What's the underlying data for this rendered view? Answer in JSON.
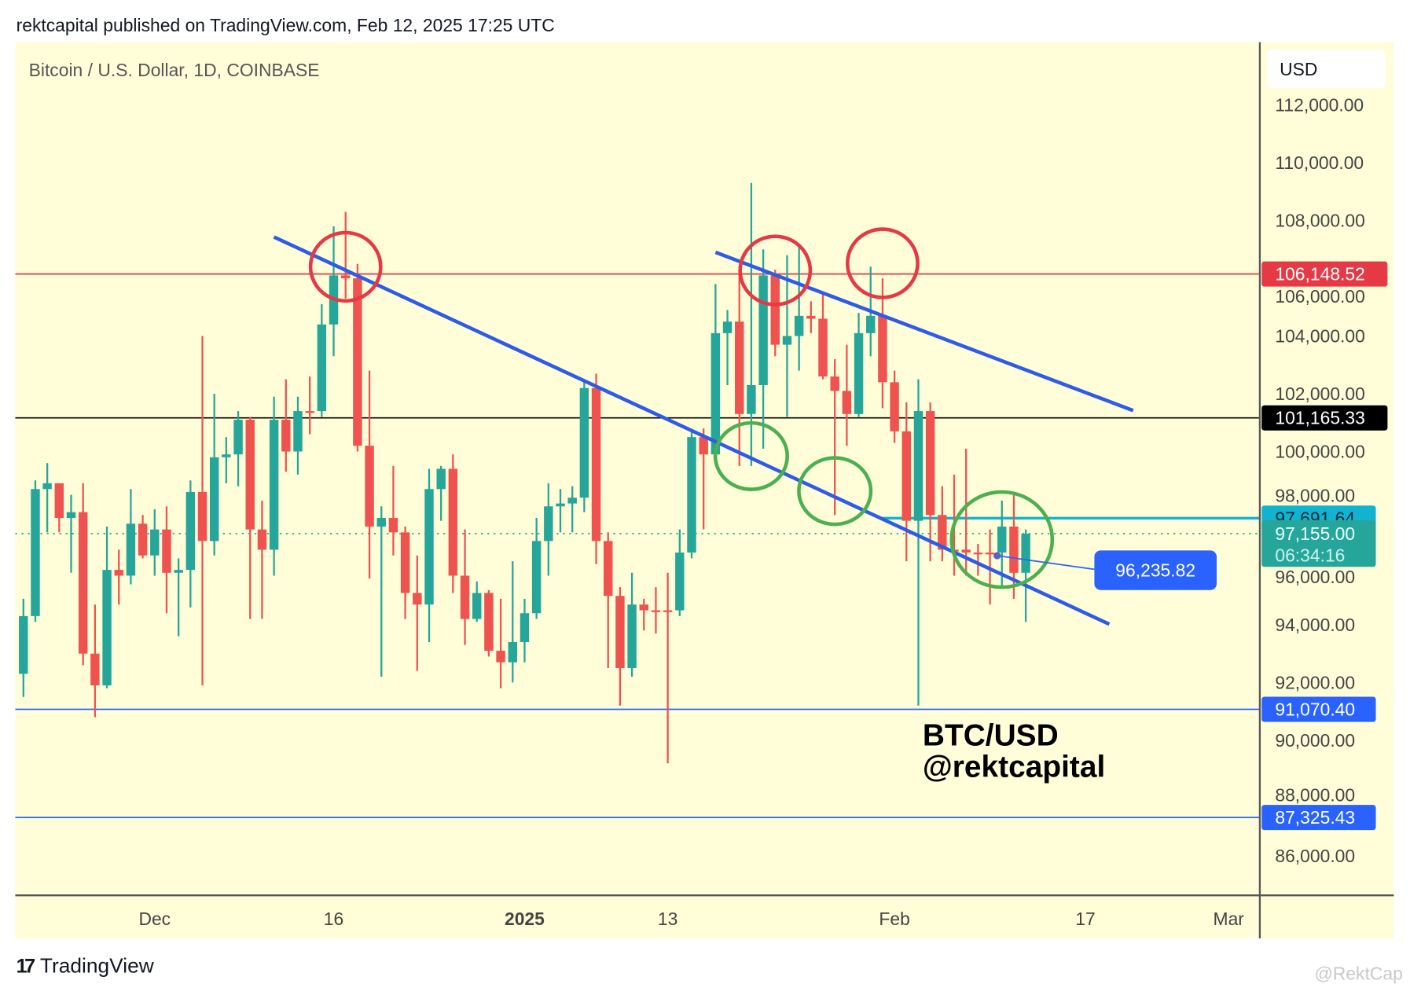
{
  "header": {
    "published": "rektcapital published on TradingView.com, Feb 12, 2025 17:25 UTC"
  },
  "footer": {
    "brand": "TradingView",
    "watermark": "@RektCap"
  },
  "colors": {
    "background": "#fffed9",
    "up": "#26a69a",
    "down": "#ef5350",
    "trendline": "#2f5be6",
    "resistance": "#e53945",
    "support_circle": "#4caf50",
    "cyan_line": "#11b3d0"
  },
  "chart_data": {
    "type": "candlestick",
    "title": "Bitcoin / U.S. Dollar, 1D, COINBASE",
    "currency": "USD",
    "watermark_lines": [
      "BTC/USD",
      "@rektcapital"
    ],
    "ylim": [
      84500,
      114000
    ],
    "y_ticks": [
      112000,
      110000,
      108000,
      106000,
      104000,
      102000,
      100000,
      98000,
      96000,
      94000,
      92000,
      90000,
      88000,
      86000
    ],
    "y_tick_labels": [
      "112,000.00",
      "110,000.00",
      "108,000.00",
      "106,000.00",
      "104,000.00",
      "102,000.00",
      "100,000.00",
      "98,000.00",
      "96,000.00",
      "94,000.00",
      "92,000.00",
      "90,000.00",
      "88,000.00",
      "86,000.00"
    ],
    "x_ticks": [
      {
        "date": "2024-12-01",
        "label": "Dec",
        "bold": false
      },
      {
        "date": "2024-12-16",
        "label": "16",
        "bold": false
      },
      {
        "date": "2025-01-01",
        "label": "2025",
        "bold": true
      },
      {
        "date": "2025-01-13",
        "label": "13",
        "bold": false
      },
      {
        "date": "2025-02-01",
        "label": "Feb",
        "bold": false
      },
      {
        "date": "2025-02-17",
        "label": "17",
        "bold": false
      },
      {
        "date": "2025-03-01",
        "label": "Mar",
        "bold": false
      }
    ],
    "candles_columns": [
      "date",
      "open",
      "high",
      "low",
      "close"
    ],
    "candles": [
      [
        "2024-11-20",
        92300,
        94900,
        91500,
        94300
      ],
      [
        "2024-11-21",
        94300,
        99000,
        94100,
        98700
      ],
      [
        "2024-11-22",
        98700,
        99600,
        97200,
        98900
      ],
      [
        "2024-11-23",
        98900,
        98900,
        97200,
        97700
      ],
      [
        "2024-11-24",
        97700,
        98500,
        95800,
        97900
      ],
      [
        "2024-11-25",
        97900,
        98900,
        92600,
        93000
      ],
      [
        "2024-11-26",
        93000,
        94700,
        90800,
        91900
      ],
      [
        "2024-11-27",
        91900,
        97400,
        91800,
        95900
      ],
      [
        "2024-11-28",
        95900,
        96600,
        94700,
        95700
      ],
      [
        "2024-11-29",
        95700,
        98700,
        95400,
        97500
      ],
      [
        "2024-11-30",
        97500,
        97800,
        96300,
        96400
      ],
      [
        "2024-12-01",
        96400,
        98000,
        95700,
        97300
      ],
      [
        "2024-12-02",
        97300,
        98100,
        94400,
        95800
      ],
      [
        "2024-12-03",
        95800,
        96300,
        93600,
        95900
      ],
      [
        "2024-12-04",
        95900,
        99000,
        94600,
        98600
      ],
      [
        "2024-12-05",
        98600,
        104000,
        91900,
        96900
      ],
      [
        "2024-12-06",
        96900,
        102000,
        96400,
        99800
      ],
      [
        "2024-12-07",
        99800,
        100500,
        98900,
        99900
      ],
      [
        "2024-12-08",
        99900,
        101400,
        98800,
        101100
      ],
      [
        "2024-12-09",
        101100,
        101200,
        94200,
        97300
      ],
      [
        "2024-12-10",
        97300,
        98300,
        94200,
        96600
      ],
      [
        "2024-12-11",
        96600,
        101900,
        95700,
        101100
      ],
      [
        "2024-12-12",
        101100,
        102500,
        99300,
        100000
      ],
      [
        "2024-12-13",
        100000,
        101900,
        99200,
        101400
      ],
      [
        "2024-12-14",
        101400,
        102600,
        100600,
        101350
      ],
      [
        "2024-12-15",
        101400,
        105100,
        101200,
        104400
      ],
      [
        "2024-12-16",
        104400,
        107800,
        103300,
        106100
      ],
      [
        "2024-12-17",
        106100,
        108300,
        105300,
        106000
      ],
      [
        "2024-12-18",
        106000,
        106500,
        100000,
        100200
      ],
      [
        "2024-12-19",
        100200,
        102800,
        95600,
        97400
      ],
      [
        "2024-12-20",
        97400,
        98100,
        92200,
        97700
      ],
      [
        "2024-12-21",
        97700,
        99500,
        96400,
        97200
      ],
      [
        "2024-12-22",
        97200,
        97400,
        94200,
        95100
      ],
      [
        "2024-12-23",
        95100,
        96400,
        92400,
        94700
      ],
      [
        "2024-12-24",
        94700,
        99400,
        93400,
        98700
      ],
      [
        "2024-12-25",
        98700,
        99500,
        97600,
        99400
      ],
      [
        "2024-12-26",
        99400,
        99900,
        95100,
        95700
      ],
      [
        "2024-12-27",
        95700,
        97300,
        93300,
        94200
      ],
      [
        "2024-12-28",
        94200,
        95500,
        94100,
        95100
      ],
      [
        "2024-12-29",
        95100,
        95200,
        92900,
        93100
      ],
      [
        "2024-12-30",
        93100,
        94900,
        91800,
        92700
      ],
      [
        "2024-12-31",
        92700,
        96200,
        92000,
        93400
      ],
      [
        "2025-01-01",
        93400,
        94900,
        92700,
        94400
      ],
      [
        "2025-01-02",
        94400,
        97700,
        94200,
        96900
      ],
      [
        "2025-01-03",
        96900,
        98900,
        95700,
        98100
      ],
      [
        "2025-01-04",
        98100,
        98700,
        97200,
        98200
      ],
      [
        "2025-01-05",
        98200,
        98800,
        97200,
        98400
      ],
      [
        "2025-01-06",
        98400,
        102500,
        97900,
        102200
      ],
      [
        "2025-01-07",
        102200,
        102700,
        96100,
        96900
      ],
      [
        "2025-01-08",
        96900,
        97200,
        92500,
        95000
      ],
      [
        "2025-01-09",
        95000,
        95300,
        91200,
        92500
      ],
      [
        "2025-01-10",
        92500,
        95800,
        92200,
        94700
      ],
      [
        "2025-01-11",
        94700,
        94900,
        93800,
        94500
      ],
      [
        "2025-01-12",
        94500,
        95300,
        93700,
        94450
      ],
      [
        "2025-01-13",
        94500,
        95800,
        89200,
        94450
      ],
      [
        "2025-01-14",
        94500,
        97300,
        94300,
        96500
      ],
      [
        "2025-01-15",
        96500,
        100700,
        96300,
        100500
      ],
      [
        "2025-01-16",
        100500,
        100800,
        97300,
        99900
      ],
      [
        "2025-01-17",
        99900,
        105800,
        99800,
        104100
      ],
      [
        "2025-01-18",
        104100,
        104900,
        102300,
        104500
      ],
      [
        "2025-01-19",
        104500,
        106300,
        99500,
        101300
      ],
      [
        "2025-01-20",
        101300,
        109300,
        99500,
        102300
      ],
      [
        "2025-01-21",
        102300,
        107000,
        100100,
        106100
      ],
      [
        "2025-01-22",
        106100,
        106300,
        103300,
        103700
      ],
      [
        "2025-01-23",
        103700,
        106800,
        101200,
        104000
      ],
      [
        "2025-01-24",
        104000,
        107100,
        102800,
        104700
      ],
      [
        "2025-01-25",
        104700,
        105200,
        104100,
        104600
      ],
      [
        "2025-01-26",
        104600,
        105500,
        102500,
        102600
      ],
      [
        "2025-01-27",
        102600,
        103200,
        97800,
        102100
      ],
      [
        "2025-01-28",
        102100,
        103700,
        100200,
        101300
      ],
      [
        "2025-01-29",
        101300,
        104800,
        101200,
        104100
      ],
      [
        "2025-01-30",
        104100,
        106400,
        103300,
        104700
      ],
      [
        "2025-01-31",
        104700,
        106000,
        101500,
        102400
      ],
      [
        "2025-02-01",
        102400,
        102800,
        100300,
        100700
      ],
      [
        "2025-02-02",
        100700,
        101700,
        96200,
        97600
      ],
      [
        "2025-02-03",
        97600,
        102500,
        91200,
        101400
      ],
      [
        "2025-02-04",
        101400,
        101700,
        96200,
        97800
      ],
      [
        "2025-02-05",
        97800,
        98800,
        96200,
        96600
      ],
      [
        "2025-02-06",
        96600,
        99200,
        95700,
        96550
      ],
      [
        "2025-02-07",
        96600,
        100100,
        95700,
        96500
      ],
      [
        "2025-02-08",
        96500,
        96800,
        95700,
        96450
      ],
      [
        "2025-02-09",
        96500,
        97300,
        94700,
        96450
      ],
      [
        "2025-02-10",
        96500,
        98300,
        95300,
        97400
      ],
      [
        "2025-02-11",
        97400,
        98500,
        94900,
        95800
      ],
      [
        "2025-02-12",
        95800,
        97300,
        94100,
        97155
      ]
    ],
    "horizontal_levels": [
      {
        "price": 106148.52,
        "label": "106,148.52",
        "color": "#e53945",
        "text_color": "#ffffff",
        "line": "solid"
      },
      {
        "price": 101165.33,
        "label": "101,165.33",
        "color": "#000000",
        "text_color": "#ffffff",
        "line": "solid"
      },
      {
        "price": 91070.4,
        "label": "91,070.40",
        "color": "#2962ff",
        "text_color": "#ffffff",
        "line": "solid"
      },
      {
        "price": 87325.43,
        "label": "87,325.43",
        "color": "#2962ff",
        "text_color": "#ffffff",
        "line": "solid"
      }
    ],
    "partial_level": {
      "price": 97691.64,
      "label": "97,691.64",
      "from": "2025-01-31",
      "color": "#11b3d0"
    },
    "last_price": {
      "price": 97155.0,
      "label": "97,155.00",
      "countdown": "06:34:16",
      "color": "#26a69a"
    },
    "callout": {
      "price": 96235.82,
      "label": "96,235.82",
      "anchor_date": "2025-02-09",
      "color": "#2962ff"
    },
    "trendlines": [
      {
        "from": [
          "2024-12-11",
          107430
        ],
        "to": [
          "2025-02-19",
          94020
        ]
      },
      {
        "from": [
          "2025-01-17",
          106900
        ],
        "to": [
          "2025-02-21",
          101420
        ]
      }
    ],
    "resistance_circles": [
      [
        "2024-12-17",
        106400
      ],
      [
        "2025-01-22",
        106270
      ],
      [
        "2025-01-31",
        106520
      ]
    ],
    "support_circles": [
      [
        "2025-01-20",
        99840
      ],
      [
        "2025-01-27",
        98630
      ],
      [
        "2025-02-10",
        96950
      ]
    ]
  }
}
